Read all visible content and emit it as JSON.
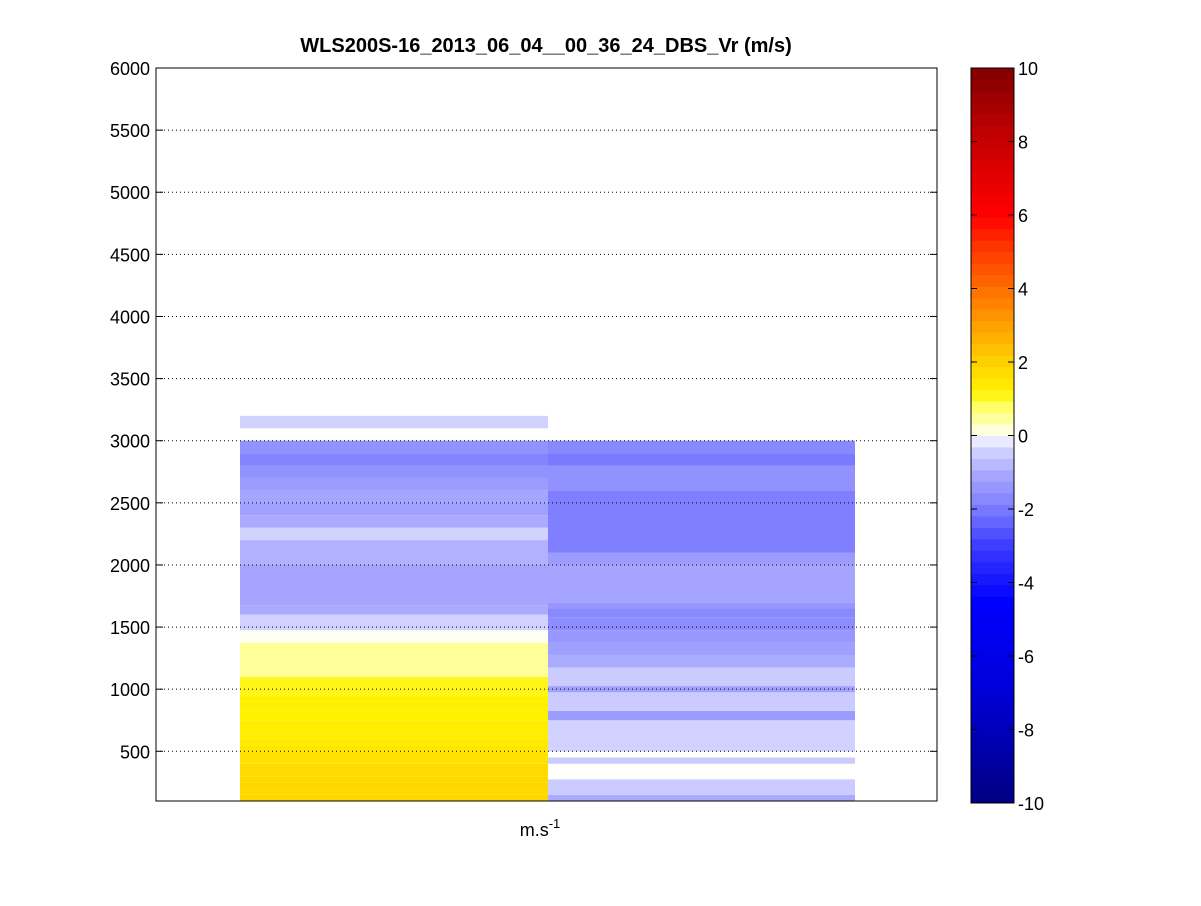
{
  "chart_data": {
    "type": "heatmap",
    "title": "WLS200S-16_2013_06_04__00_36_24_DBS_Vr (m/s)",
    "xlabel": "m.s",
    "xlabel_sup": "-1",
    "ylabel": "",
    "ylim": [
      100,
      6000
    ],
    "yticks": [
      "500",
      "1000",
      "1500",
      "2000",
      "2500",
      "3000",
      "3500",
      "4000",
      "4500",
      "5000",
      "5500",
      "6000"
    ],
    "grid": "horizontal dotted",
    "colorbar": {
      "range": [
        -10,
        10
      ],
      "ticks": [
        "-10",
        "-8",
        "-6",
        "-4",
        "-2",
        "0",
        "2",
        "4",
        "6",
        "8",
        "10"
      ],
      "levels": 64,
      "colormap": "blue-white-yellow-red"
    },
    "columns": [
      {
        "cells": [
          {
            "y0": 100,
            "y1": 150,
            "v": 1.9
          },
          {
            "y0": 150,
            "y1": 200,
            "v": 1.8
          },
          {
            "y0": 200,
            "y1": 250,
            "v": 1.9
          },
          {
            "y0": 250,
            "y1": 300,
            "v": 1.8
          },
          {
            "y0": 300,
            "y1": 350,
            "v": 1.8
          },
          {
            "y0": 350,
            "y1": 400,
            "v": 1.8
          },
          {
            "y0": 400,
            "y1": 450,
            "v": 1.6
          },
          {
            "y0": 450,
            "y1": 500,
            "v": 1.6
          },
          {
            "y0": 500,
            "y1": 550,
            "v": 1.5
          },
          {
            "y0": 550,
            "y1": 600,
            "v": 1.4
          },
          {
            "y0": 600,
            "y1": 650,
            "v": 1.3
          },
          {
            "y0": 650,
            "y1": 700,
            "v": 1.3
          },
          {
            "y0": 700,
            "y1": 750,
            "v": 1.3
          },
          {
            "y0": 750,
            "y1": 800,
            "v": 1.2
          },
          {
            "y0": 800,
            "y1": 850,
            "v": 1.2
          },
          {
            "y0": 850,
            "y1": 900,
            "v": 1.3
          },
          {
            "y0": 900,
            "y1": 950,
            "v": 1.2
          },
          {
            "y0": 950,
            "y1": 1100,
            "v": 1.1
          },
          {
            "y0": 1100,
            "y1": 1375,
            "v": 0.5
          },
          {
            "y0": 1375,
            "y1": 1475,
            "v": 0.05
          },
          {
            "y0": 1475,
            "y1": 1600,
            "v": -0.4
          },
          {
            "y0": 1600,
            "y1": 1675,
            "v": -1.0
          },
          {
            "y0": 1675,
            "y1": 2000,
            "v": -1.1
          },
          {
            "y0": 2000,
            "y1": 2200,
            "v": -0.9
          },
          {
            "y0": 2200,
            "y1": 2300,
            "v": -0.4
          },
          {
            "y0": 2300,
            "y1": 2400,
            "v": -1.0
          },
          {
            "y0": 2400,
            "y1": 2500,
            "v": -1.2
          },
          {
            "y0": 2500,
            "y1": 2600,
            "v": -1.1
          },
          {
            "y0": 2600,
            "y1": 2700,
            "v": -1.3
          },
          {
            "y0": 2700,
            "y1": 2800,
            "v": -1.5
          },
          {
            "y0": 2800,
            "y1": 2900,
            "v": -1.8
          },
          {
            "y0": 2900,
            "y1": 3000,
            "v": -1.5
          },
          {
            "y0": 3100,
            "y1": 3200,
            "v": -0.4
          }
        ]
      },
      {
        "cells": [
          {
            "y0": 100,
            "y1": 150,
            "v": -1.0
          },
          {
            "y0": 150,
            "y1": 275,
            "v": -0.5
          },
          {
            "y0": 275,
            "y1": 400,
            "v": 0.02
          },
          {
            "y0": 400,
            "y1": 450,
            "v": -0.5
          },
          {
            "y0": 450,
            "y1": 500,
            "v": 0.02
          },
          {
            "y0": 500,
            "y1": 750,
            "v": -0.4
          },
          {
            "y0": 750,
            "y1": 825,
            "v": -1.3
          },
          {
            "y0": 825,
            "y1": 975,
            "v": -0.5
          },
          {
            "y0": 975,
            "y1": 1025,
            "v": -1.2
          },
          {
            "y0": 1025,
            "y1": 1175,
            "v": -0.5
          },
          {
            "y0": 1175,
            "y1": 1275,
            "v": -1.0
          },
          {
            "y0": 1275,
            "y1": 1375,
            "v": -1.2
          },
          {
            "y0": 1375,
            "y1": 1475,
            "v": -1.4
          },
          {
            "y0": 1475,
            "y1": 1575,
            "v": -1.6
          },
          {
            "y0": 1575,
            "y1": 1650,
            "v": -1.7
          },
          {
            "y0": 1650,
            "y1": 1700,
            "v": -1.4
          },
          {
            "y0": 1700,
            "y1": 2000,
            "v": -1.1
          },
          {
            "y0": 2000,
            "y1": 2100,
            "v": -1.3
          },
          {
            "y0": 2100,
            "y1": 2600,
            "v": -1.9
          },
          {
            "y0": 2600,
            "y1": 2800,
            "v": -1.5
          },
          {
            "y0": 2800,
            "y1": 2900,
            "v": -2.0
          },
          {
            "y0": 2900,
            "y1": 3000,
            "v": -1.7
          }
        ]
      }
    ]
  }
}
